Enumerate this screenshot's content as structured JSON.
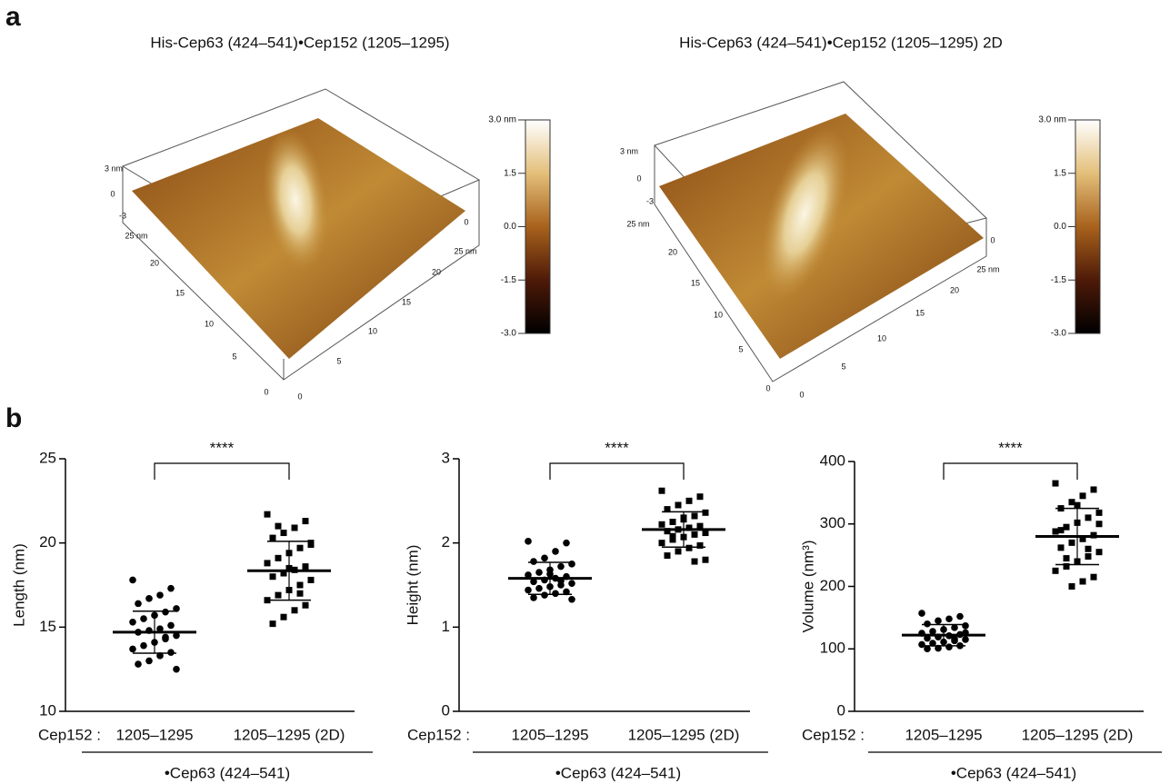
{
  "panel_labels": [
    "a",
    "b"
  ],
  "afm_panels": [
    {
      "title": "His-Cep63 (424–541)•Cep152 (1205–1295)",
      "z_ticks": [
        "3 nm",
        "0",
        "-3"
      ],
      "z_right_tick": "0",
      "left_ticks": [
        "25 nm",
        "20",
        "15",
        "10",
        "5",
        "0"
      ],
      "right_ticks": [
        "0",
        "5",
        "10",
        "15",
        "20",
        "25 nm"
      ],
      "colorbar": {
        "clim": [
          -3,
          3
        ],
        "ticks": [
          {
            "value": 3,
            "label": "3.0 nm"
          },
          1.5,
          {
            "value": 0,
            "label": "0.0"
          },
          -1.5,
          {
            "value": -3,
            "label": "-3.0"
          }
        ]
      }
    },
    {
      "title": "His-Cep63 (424–541)•Cep152 (1205–1295) 2D",
      "z_ticks": [
        "3 nm",
        "0",
        "-3"
      ],
      "z_right_tick": "0",
      "left_ticks": [
        "25 nm",
        "20",
        "15",
        "10",
        "5",
        "0"
      ],
      "right_ticks": [
        "0",
        "5",
        "10",
        "15",
        "20",
        "25 nm"
      ],
      "colorbar": {
        "clim": [
          -3,
          3
        ],
        "ticks": [
          {
            "value": 3,
            "label": "3.0 nm"
          },
          1.5,
          {
            "value": 0,
            "label": "0.0"
          },
          -1.5,
          {
            "value": -3,
            "label": "-3.0"
          }
        ]
      }
    }
  ],
  "chart_data": [
    {
      "type": "dotplot",
      "ylabel": "Length (nm)",
      "ylim": [
        10,
        25
      ],
      "yticks": [
        10,
        15,
        20,
        25
      ],
      "x_prefix": "Cep152 :",
      "categories": [
        "1205–1295",
        "1205–1295 (2D)"
      ],
      "group_label": "•Cep63 (424–541)",
      "significance": "****",
      "color": "#000000",
      "groups": [
        {
          "marker": "circle",
          "mean": 14.7,
          "sd": 1.25,
          "values": [
            17.8,
            17.3,
            16.9,
            16.7,
            16.4,
            16.1,
            15.9,
            15.7,
            15.5,
            15.3,
            15.1,
            14.9,
            14.8,
            14.7,
            14.5,
            14.3,
            14.1,
            13.9,
            13.7,
            13.5,
            13.3,
            13.0,
            12.8,
            12.5,
            14.4
          ]
        },
        {
          "marker": "square",
          "mean": 18.35,
          "sd": 1.75,
          "values": [
            21.7,
            21.3,
            20.9,
            20.6,
            20.3,
            20.0,
            19.7,
            19.4,
            19.1,
            18.8,
            18.6,
            18.4,
            18.2,
            18.0,
            17.8,
            17.5,
            17.2,
            16.9,
            16.6,
            16.3,
            16.0,
            15.6,
            15.2,
            19.9,
            17.0,
            18.5,
            21.0
          ]
        }
      ]
    },
    {
      "type": "dotplot",
      "ylabel": "Height (nm)",
      "ylim": [
        0,
        3
      ],
      "yticks": [
        0,
        1,
        2,
        3
      ],
      "x_prefix": "Cep152 :",
      "categories": [
        "1205–1295",
        "1205–1295 (2D)"
      ],
      "group_label": "•Cep63 (424–541)",
      "significance": "****",
      "color": "#000000",
      "groups": [
        {
          "marker": "circle",
          "mean": 1.58,
          "sd": 0.19,
          "values": [
            2.02,
            2.0,
            1.9,
            1.82,
            1.78,
            1.75,
            1.72,
            1.68,
            1.65,
            1.62,
            1.6,
            1.58,
            1.56,
            1.54,
            1.52,
            1.5,
            1.48,
            1.46,
            1.44,
            1.42,
            1.4,
            1.38,
            1.35,
            1.33,
            1.55,
            1.63
          ]
        },
        {
          "marker": "square",
          "mean": 2.16,
          "sd": 0.21,
          "values": [
            2.62,
            2.55,
            2.5,
            2.45,
            2.4,
            2.36,
            2.32,
            2.28,
            2.25,
            2.22,
            2.2,
            2.18,
            2.16,
            2.14,
            2.12,
            2.1,
            2.07,
            2.04,
            2.0,
            1.97,
            1.94,
            1.9,
            1.85,
            1.8,
            1.78,
            2.3,
            2.08
          ]
        }
      ]
    },
    {
      "type": "dotplot",
      "ylabel": "Volume (nm³)",
      "ylim": [
        0,
        400
      ],
      "yticks": [
        0,
        100,
        200,
        300,
        400
      ],
      "x_prefix": "Cep152 :",
      "categories": [
        "1205–1295",
        "1205–1295 (2D)"
      ],
      "group_label": "•Cep63 (424–541)",
      "significance": "****",
      "color": "#000000",
      "groups": [
        {
          "marker": "circle",
          "mean": 122,
          "sd": 17,
          "values": [
            157,
            152,
            148,
            145,
            140,
            137,
            134,
            131,
            128,
            125,
            123,
            121,
            119,
            117,
            115,
            113,
            111,
            109,
            107,
            105,
            103,
            101,
            100,
            126,
            116
          ]
        },
        {
          "marker": "square",
          "mean": 280,
          "sd": 45,
          "values": [
            365,
            355,
            345,
            335,
            325,
            318,
            310,
            302,
            295,
            288,
            282,
            276,
            270,
            262,
            255,
            248,
            240,
            232,
            225,
            215,
            208,
            200,
            290,
            300,
            260,
            330,
            245
          ]
        }
      ]
    }
  ]
}
